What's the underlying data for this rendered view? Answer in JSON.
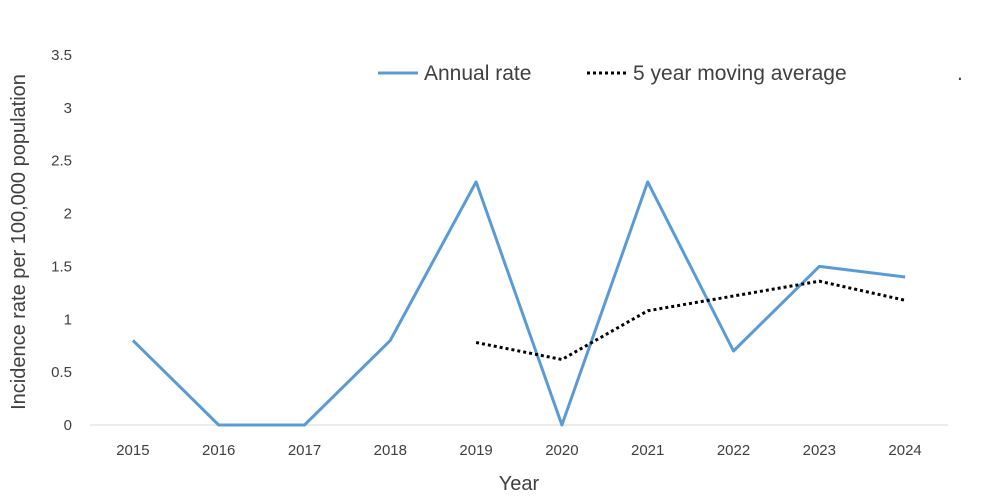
{
  "chart_data": {
    "type": "line",
    "x": [
      "2015",
      "2016",
      "2017",
      "2018",
      "2019",
      "2020",
      "2021",
      "2022",
      "2023",
      "2024"
    ],
    "series": [
      {
        "name": "Annual rate",
        "values": [
          0.8,
          0,
          0,
          0.8,
          2.3,
          0,
          2.3,
          0.7,
          1.5,
          1.4
        ],
        "color": "#5b9bd5",
        "style": "solid"
      },
      {
        "name": "5 year moving average",
        "values": [
          null,
          null,
          null,
          null,
          0.78,
          0.62,
          1.08,
          1.22,
          1.36,
          1.18
        ],
        "color": "#000000",
        "style": "dotted"
      }
    ],
    "y_ticks": [
      "0",
      "0.5",
      "1",
      "1.5",
      "2",
      "2.5",
      "3",
      "3.5"
    ],
    "ylim": [
      0,
      3.5
    ],
    "xlabel": "Year",
    "ylabel": "Incidence rate per 100,000 population",
    "legend_position": "top",
    "legend_trailing_mark": ".",
    "grid": false
  }
}
